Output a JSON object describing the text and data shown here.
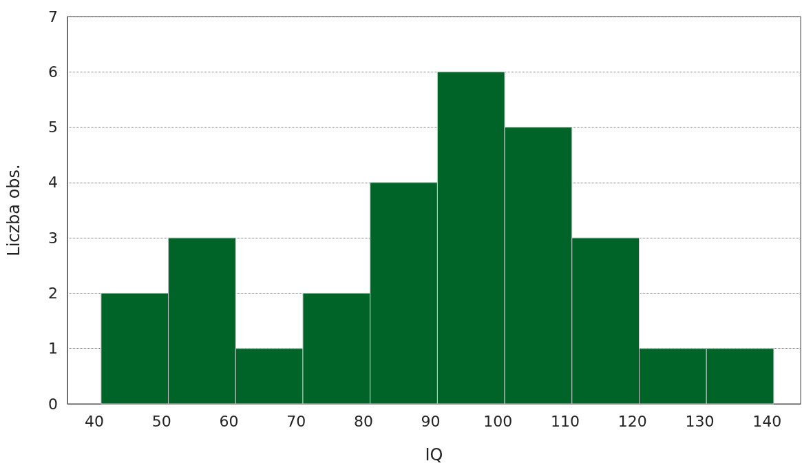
{
  "chart_data": {
    "type": "histogram",
    "xlabel": "IQ",
    "ylabel": "Liczba obs.",
    "bins": [
      41,
      51,
      61,
      71,
      81,
      91,
      101,
      111,
      121,
      131,
      141
    ],
    "values": [
      2,
      3,
      1,
      2,
      4,
      6,
      5,
      3,
      1,
      1
    ],
    "color": "#006428",
    "xlim": [
      36,
      145
    ],
    "xticks": [
      40,
      50,
      60,
      70,
      80,
      90,
      100,
      110,
      120,
      130,
      140
    ],
    "ylim": [
      0,
      7
    ],
    "yticks": [
      0,
      1,
      2,
      3,
      4,
      5,
      6,
      7
    ],
    "grid": "y"
  }
}
